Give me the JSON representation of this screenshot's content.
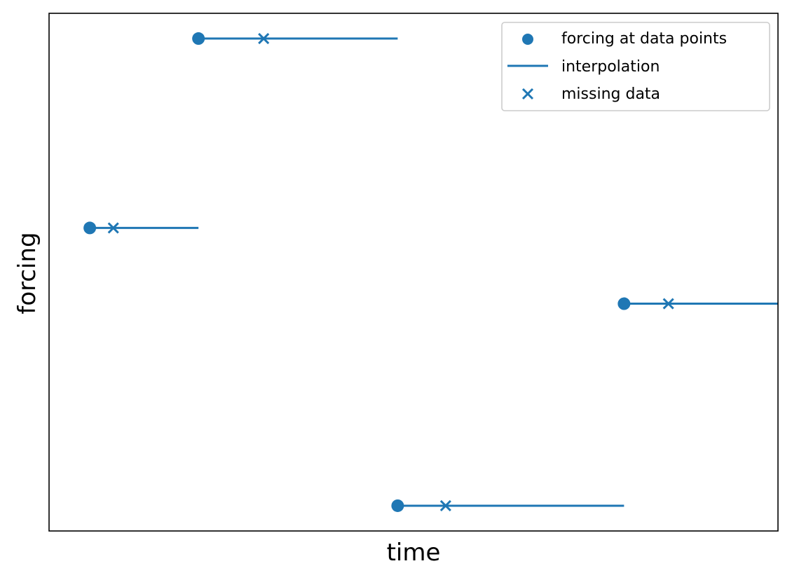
{
  "chart_data": {
    "type": "line",
    "title": "",
    "xlabel": "time",
    "ylabel": "forcing",
    "xlim": [
      -0.45,
      7.6
    ],
    "ylim": [
      -0.2,
      3.9
    ],
    "grid": false,
    "ticks_visible": false,
    "legend_placement": "top-right",
    "color": "#1f77b4",
    "series": [
      {
        "name": "forcing at data points",
        "kind": "scatter",
        "marker": "circle",
        "points": [
          [
            0,
            2.2
          ],
          [
            1.2,
            3.7
          ],
          [
            3.4,
            0
          ],
          [
            5.9,
            1.6
          ]
        ]
      },
      {
        "name": "interpolation",
        "kind": "step",
        "segments": [
          [
            [
              0,
              2.2
            ],
            [
              1.2,
              2.2
            ]
          ],
          [
            [
              1.2,
              3.7
            ],
            [
              3.4,
              3.7
            ]
          ],
          [
            [
              3.4,
              0
            ],
            [
              5.9,
              0
            ]
          ],
          [
            [
              5.9,
              1.6
            ],
            [
              7.6,
              1.6
            ]
          ]
        ]
      },
      {
        "name": "missing data",
        "kind": "scatter",
        "marker": "x",
        "points": [
          [
            0.26,
            2.2
          ],
          [
            1.92,
            3.7
          ],
          [
            3.93,
            0
          ],
          [
            6.39,
            1.6
          ]
        ]
      }
    ]
  }
}
